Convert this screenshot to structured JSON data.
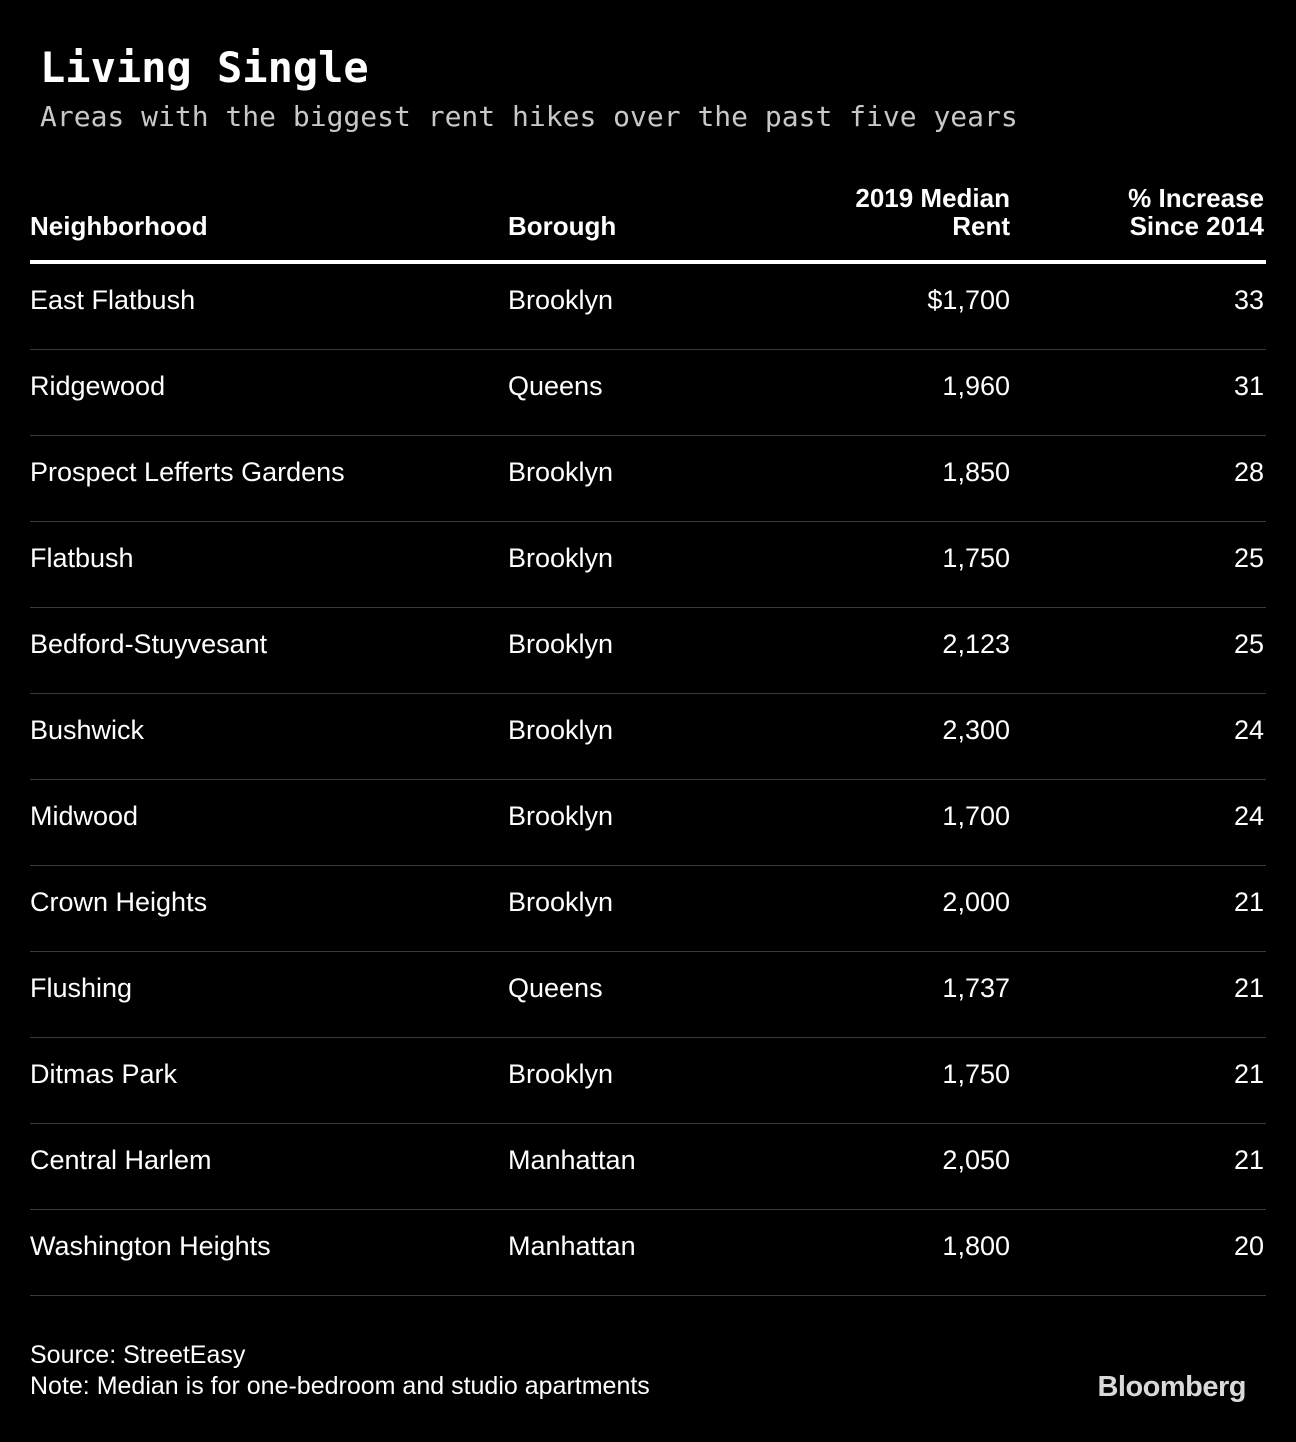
{
  "title": "Living Single",
  "subtitle": "Areas with the biggest rent hikes over the past five years",
  "headers": {
    "neighborhood": "Neighborhood",
    "borough": "Borough",
    "rent_line1": "2019 Median",
    "rent_line2": "Rent",
    "pct_line1": "% Increase",
    "pct_line2": "Since 2014"
  },
  "chart_data": {
    "type": "table",
    "title": "Living Single",
    "subtitle": "Areas with the biggest rent hikes over the past five years",
    "columns": [
      "Neighborhood",
      "Borough",
      "2019 Median Rent",
      "% Increase Since 2014"
    ],
    "rows": [
      {
        "neighborhood": "East Flatbush",
        "borough": "Brooklyn",
        "rent": "$1,700",
        "pct": "33"
      },
      {
        "neighborhood": "Ridgewood",
        "borough": "Queens",
        "rent": "1,960",
        "pct": "31"
      },
      {
        "neighborhood": "Prospect Lefferts Gardens",
        "borough": "Brooklyn",
        "rent": "1,850",
        "pct": "28"
      },
      {
        "neighborhood": "Flatbush",
        "borough": "Brooklyn",
        "rent": "1,750",
        "pct": "25"
      },
      {
        "neighborhood": "Bedford-Stuyvesant",
        "borough": "Brooklyn",
        "rent": "2,123",
        "pct": "25"
      },
      {
        "neighborhood": "Bushwick",
        "borough": "Brooklyn",
        "rent": "2,300",
        "pct": "24"
      },
      {
        "neighborhood": "Midwood",
        "borough": "Brooklyn",
        "rent": "1,700",
        "pct": "24"
      },
      {
        "neighborhood": "Crown Heights",
        "borough": "Brooklyn",
        "rent": "2,000",
        "pct": "21"
      },
      {
        "neighborhood": "Flushing",
        "borough": "Queens",
        "rent": "1,737",
        "pct": "21"
      },
      {
        "neighborhood": "Ditmas Park",
        "borough": "Brooklyn",
        "rent": "1,750",
        "pct": "21"
      },
      {
        "neighborhood": "Central Harlem",
        "borough": "Manhattan",
        "rent": "2,050",
        "pct": "21"
      },
      {
        "neighborhood": "Washington Heights",
        "borough": "Manhattan",
        "rent": "1,800",
        "pct": "20"
      }
    ]
  },
  "footer": {
    "source": "Source: StreetEasy",
    "note": "Note: Median is for one-bedroom and studio apartments"
  },
  "brand": "Bloomberg",
  "colors": {
    "background": "#000000",
    "text": "#ffffff",
    "subtitle": "#c8c8c8",
    "divider": "#3a3a3a"
  }
}
